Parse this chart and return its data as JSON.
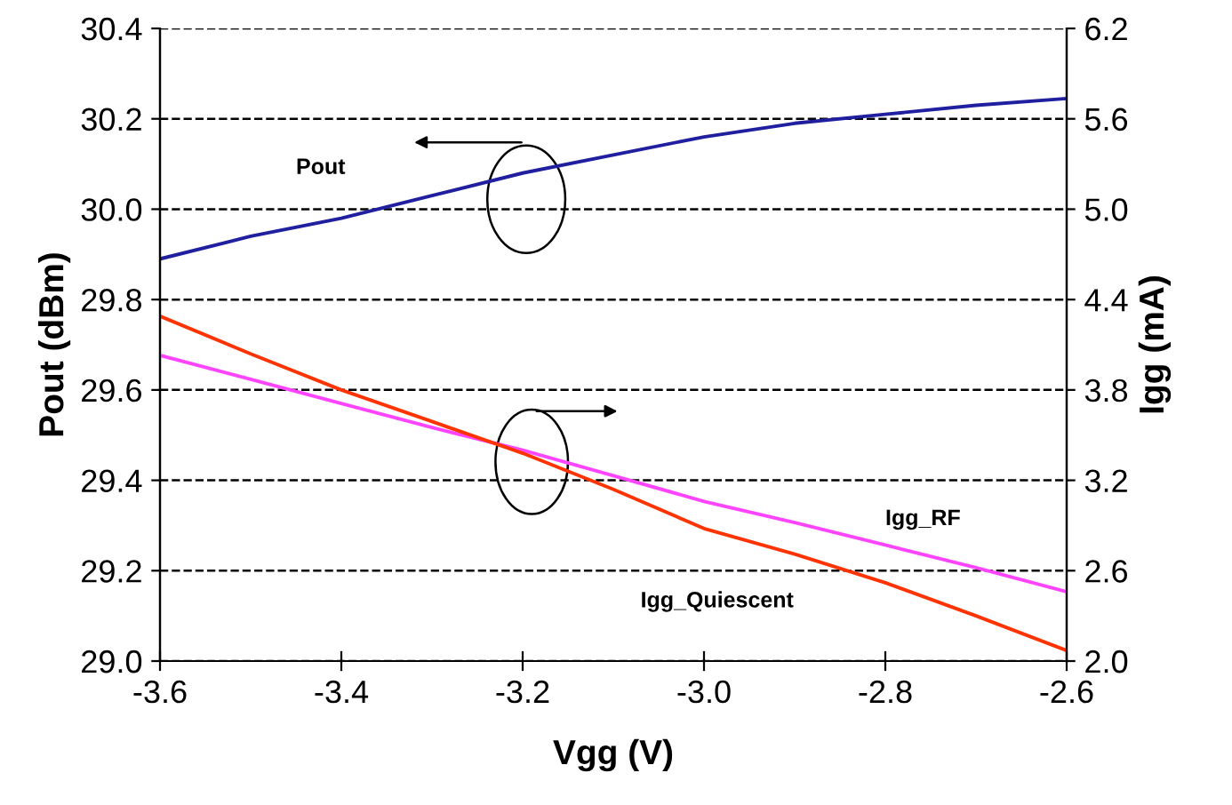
{
  "chart_data": {
    "type": "line",
    "xlabel": "Vgg (V)",
    "ylabel": "Pout (dBm)",
    "y2label": "Igg (mA)",
    "x": [
      -3.6,
      -3.5,
      -3.4,
      -3.3,
      -3.2,
      -3.1,
      -3.0,
      -2.9,
      -2.8,
      -2.7,
      -2.6
    ],
    "series": [
      {
        "name": "Pout",
        "color": "#1f1f9f",
        "values": [
          29.89,
          29.94,
          29.98,
          30.03,
          30.08,
          30.12,
          30.16,
          30.19,
          30.21,
          30.23,
          30.245
        ]
      },
      {
        "name": "Igg_RF",
        "color": "#ff44ff",
        "axis": "y2",
        "values": [
          4.03,
          3.87,
          3.71,
          3.55,
          3.4,
          3.23,
          3.06,
          2.92,
          2.77,
          2.62,
          2.46
        ]
      },
      {
        "name": "Igg_Quiescent",
        "color": "#ff3300",
        "axis": "y2",
        "values": [
          4.29,
          4.04,
          3.8,
          3.59,
          3.38,
          3.14,
          2.88,
          2.71,
          2.52,
          2.3,
          2.07
        ]
      }
    ],
    "xlim": [
      -3.6,
      -2.6
    ],
    "xticks": [
      {
        "value": -3.6,
        "label": "-3.6"
      },
      {
        "value": -3.4,
        "label": "-3.4"
      },
      {
        "value": -3.2,
        "label": "-3.2"
      },
      {
        "value": -3.0,
        "label": "-3.0"
      },
      {
        "value": -2.8,
        "label": "-2.8"
      },
      {
        "value": -2.6,
        "label": "-2.6"
      }
    ],
    "ylim": [
      29.0,
      30.4
    ],
    "yticks": [
      {
        "value": 29.0,
        "label": "29.0"
      },
      29.2,
      29.4,
      29.6,
      29.8,
      {
        "value": 30.0,
        "label": "30.0"
      },
      30.2,
      30.4
    ],
    "y2lim": [
      2.0,
      6.2
    ],
    "y2ticks": [
      {
        "value": 2.0,
        "label": "2.0"
      },
      2.6,
      3.2,
      3.8,
      4.4,
      {
        "value": 5.0,
        "label": "5.0"
      },
      5.6,
      6.2
    ],
    "grid": "y",
    "marker": "none"
  }
}
